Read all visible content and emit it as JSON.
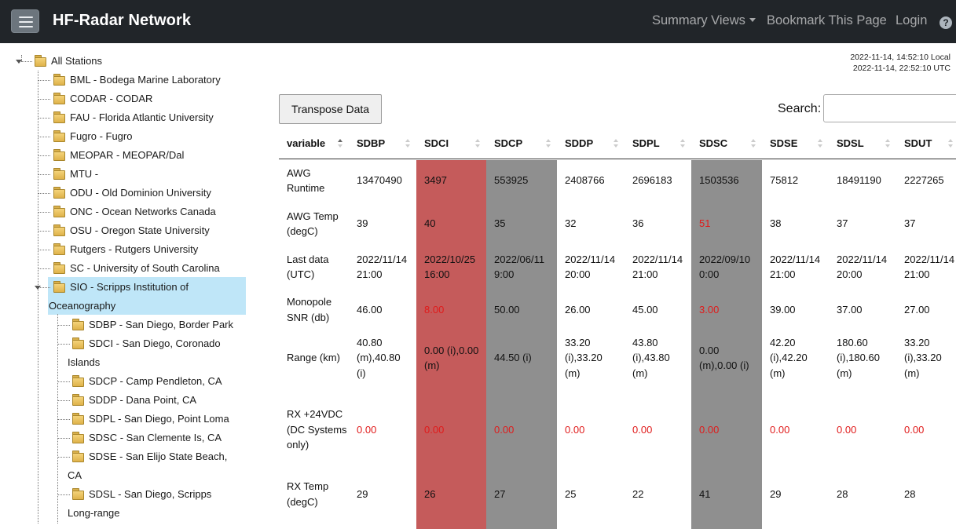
{
  "navbar": {
    "brand": "HF-Radar Network",
    "summary_views": "Summary Views",
    "bookmark": "Bookmark This Page",
    "login": "Login",
    "help": "?"
  },
  "colors": {
    "navbar_bg": "#212529",
    "red_column": "#c55b5b",
    "gray_column": "#8f8f8f",
    "warning_text": "#e01b1b",
    "selected_node": "#bfe6f8"
  },
  "tree": {
    "root": "All Stations",
    "nodes": [
      "BML - Bodega Marine Laboratory",
      "CODAR - CODAR",
      "FAU - Florida Atlantic University",
      "Fugro - Fugro",
      "MEOPAR - MEOPAR/Dal",
      "MTU -",
      "ODU - Old Dominion University",
      "ONC - Ocean Networks Canada",
      "OSU - Oregon State University",
      "Rutgers - Rutgers University",
      "SC - University of South Carolina",
      "SIO - Scripps Institution of Oceanography"
    ],
    "sio_children": [
      "SDBP - San Diego, Border Park",
      "SDCI - San Diego, Coronado Islands",
      "SDCP - Camp Pendleton, CA",
      "SDDP - Dana Point, CA",
      "SDPL - San Diego, Point Loma",
      "SDSC - San Clemente Is, CA",
      "SDSE - San Elijo State Beach, CA",
      "SDSL - San Diego, Scripps Long-range"
    ]
  },
  "timestamps": {
    "local": "2022-11-14, 14:52:10 Local",
    "utc": "2022-11-14, 22:52:10 UTC"
  },
  "controls": {
    "transpose_label": "Transpose Data",
    "search_label": "Search:",
    "search_value": ""
  },
  "table": {
    "headers": [
      "variable",
      "SDBP",
      "SDCI",
      "SDCP",
      "SDDP",
      "SDPL",
      "SDSC",
      "SDSE",
      "SDSL",
      "SDUT"
    ],
    "column_status": [
      "none",
      "ok",
      "error",
      "stale",
      "ok",
      "ok",
      "stale",
      "ok",
      "ok",
      "ok"
    ],
    "rows": [
      {
        "variable": "AWG Runtime",
        "values": [
          "13470490",
          "3497",
          "553925",
          "2408766",
          "2696183",
          "1503536",
          "75812",
          "18491190",
          "2227265"
        ],
        "warn": []
      },
      {
        "variable": "AWG Temp (degC)",
        "values": [
          "39",
          "40",
          "35",
          "32",
          "36",
          "51",
          "38",
          "37",
          "37"
        ],
        "warn": [
          5
        ]
      },
      {
        "variable": "Last data (UTC)",
        "values": [
          "2022/11/14 21:00",
          "2022/10/25 16:00",
          "2022/06/11 9:00",
          "2022/11/14 20:00",
          "2022/11/14 21:00",
          "2022/09/10 0:00",
          "2022/11/14 21:00",
          "2022/11/14 20:00",
          "2022/11/14 21:00"
        ],
        "warn": []
      },
      {
        "variable": "Monopole SNR (db)",
        "values": [
          "46.00",
          "8.00",
          "50.00",
          "26.00",
          "45.00",
          "3.00",
          "39.00",
          "37.00",
          "27.00"
        ],
        "warn": [
          1,
          5
        ]
      },
      {
        "variable": "Range (km)",
        "values": [
          "40.80 (m),40.80 (i)",
          "0.00 (i),0.00 (m)",
          "44.50 (i)",
          "33.20 (i),33.20 (m)",
          "43.80 (i),43.80 (m)",
          "0.00 (m),0.00 (i)",
          "42.20 (i),42.20 (m)",
          "180.60 (i),180.60 (m)",
          "33.20 (i),33.20 (m)"
        ],
        "warn": []
      },
      {
        "variable": "RX +24VDC (DC Systems only)",
        "values": [
          "0.00",
          "0.00",
          "0.00",
          "0.00",
          "0.00",
          "0.00",
          "0.00",
          "0.00",
          "0.00"
        ],
        "warn": [
          0,
          1,
          2,
          3,
          4,
          5,
          6,
          7,
          8
        ]
      },
      {
        "variable": "RX Temp (degC)",
        "values": [
          "29",
          "26",
          "27",
          "25",
          "22",
          "41",
          "29",
          "28",
          "28"
        ],
        "warn": []
      }
    ]
  }
}
